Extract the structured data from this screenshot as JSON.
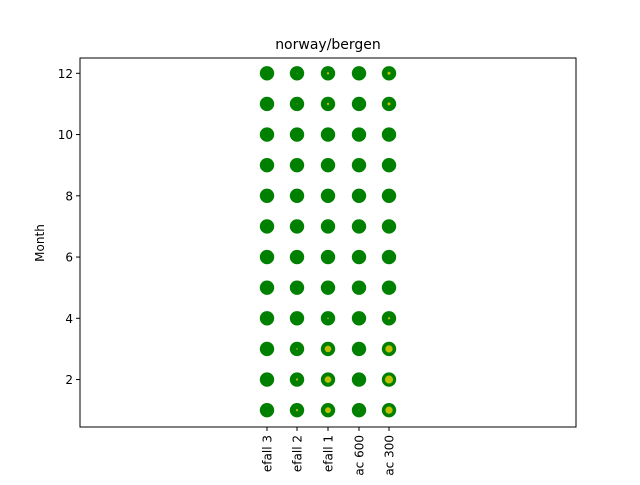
{
  "chart_data": {
    "type": "scatter",
    "title": "norway/bergen",
    "xlabel": "",
    "ylabel": "Month",
    "categories": [
      "...efall 3",
      "...efall 2",
      "...efall 1",
      "...ac 600",
      "...ac 300"
    ],
    "category_labels_display": [
      "efall 3",
      "efall 2",
      "efall 1",
      "ac 600",
      "ac 300"
    ],
    "yticks": [
      2,
      4,
      6,
      8,
      10,
      12
    ],
    "ylim": [
      0.45,
      12.5
    ],
    "grid": false,
    "months": [
      1,
      2,
      3,
      4,
      5,
      6,
      7,
      8,
      9,
      10,
      11,
      12
    ],
    "outer_color": "#008000",
    "inner_color": "#bfbf00",
    "outer_size": [
      [
        1,
        1,
        1,
        1,
        1,
        1,
        1,
        1,
        1,
        1,
        1,
        1
      ],
      [
        1,
        1,
        1,
        1,
        1,
        1,
        1,
        1,
        1,
        1,
        1,
        1
      ],
      [
        1,
        1,
        1,
        1,
        1,
        1,
        1,
        1,
        1,
        1,
        1,
        1
      ],
      [
        1,
        1,
        1,
        1,
        1,
        1,
        1,
        1,
        1,
        1,
        1,
        1
      ],
      [
        1,
        1,
        1,
        1,
        1,
        1,
        1,
        1,
        1,
        1,
        1,
        1
      ]
    ],
    "inner_size": [
      [
        0,
        0,
        0,
        0,
        0,
        0,
        0,
        0,
        0,
        0,
        0,
        0
      ],
      [
        0.2,
        0.2,
        0.15,
        0,
        0,
        0,
        0,
        0,
        0,
        0,
        0.1,
        0.1
      ],
      [
        0.45,
        0.5,
        0.5,
        0.15,
        0,
        0,
        0,
        0,
        0,
        0,
        0.2,
        0.2
      ],
      [
        0.1,
        0,
        0,
        0,
        0,
        0,
        0,
        0,
        0,
        0,
        0,
        0
      ],
      [
        0.55,
        0.6,
        0.55,
        0.2,
        0,
        0,
        0,
        0,
        0,
        0,
        0.25,
        0.25
      ]
    ]
  }
}
